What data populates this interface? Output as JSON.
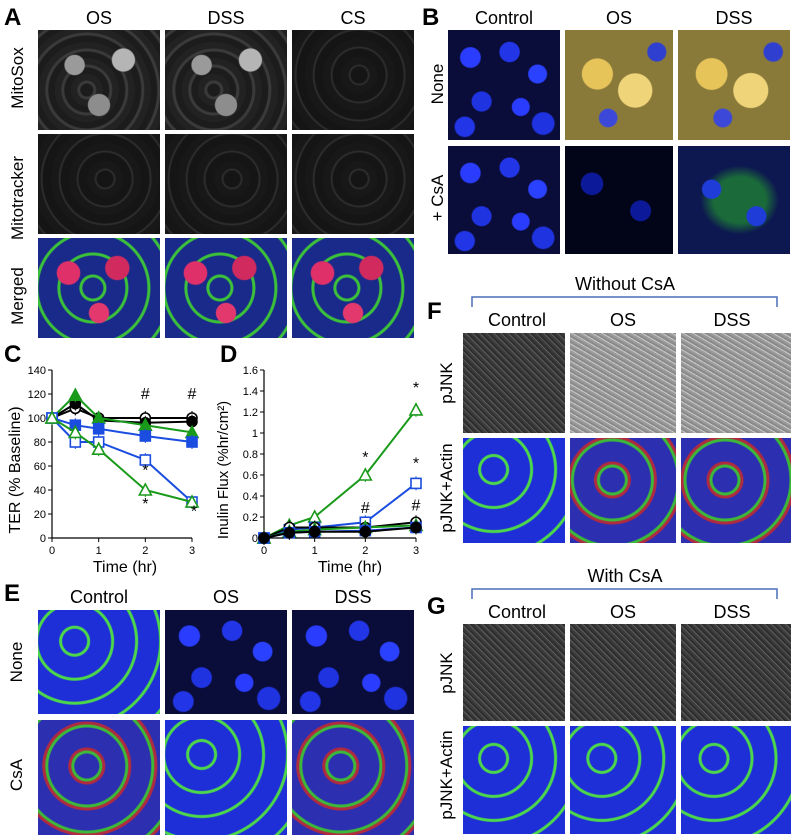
{
  "panels": {
    "A": {
      "label": "A",
      "columns": [
        "OS",
        "DSS",
        "CS"
      ],
      "rows": [
        "MitoSox",
        "Mitotracker",
        "Merged"
      ]
    },
    "B": {
      "label": "B",
      "columns": [
        "Control",
        "OS",
        "DSS"
      ],
      "rows": [
        "None",
        "+ CsA"
      ]
    },
    "C": {
      "label": "C",
      "ylabel": "TER (% Baseline)",
      "xlabel": "Time (hr)",
      "yticks": [
        "0",
        "20",
        "40",
        "60",
        "80",
        "100",
        "120",
        "140"
      ],
      "xticks": [
        "0",
        "1",
        "2",
        "3"
      ],
      "annotations": [
        "#",
        "#",
        "*",
        "*",
        "*"
      ]
    },
    "D": {
      "label": "D",
      "ylabel": "Inulin Flux (%hr/cm²)",
      "xlabel": "Time (hr)",
      "yticks": [
        "0",
        "0.2",
        "0.4",
        "0.6",
        "0.8",
        "1",
        "1.2",
        "1.4",
        "1.6"
      ],
      "xticks": [
        "0",
        "1",
        "2",
        "3"
      ],
      "annotations": [
        "*",
        "*",
        "*",
        "#",
        "#"
      ]
    },
    "E": {
      "label": "E",
      "columns": [
        "Control",
        "OS",
        "DSS"
      ],
      "rows": [
        "None",
        "CsA"
      ]
    },
    "F": {
      "label": "F",
      "group": "Without CsA",
      "columns": [
        "Control",
        "OS",
        "DSS"
      ],
      "rows": [
        "pJNK",
        "pJNK+Actin"
      ]
    },
    "G": {
      "label": "G",
      "group": "With CsA",
      "columns": [
        "Control",
        "OS",
        "DSS"
      ],
      "rows": [
        "pJNK",
        "pJNK+Actin"
      ]
    }
  },
  "chart_data": [
    {
      "type": "line",
      "panel": "C",
      "xlabel": "Time (hr)",
      "ylabel": "TER (% Baseline)",
      "ylim": [
        0,
        140
      ],
      "xlim": [
        0,
        3
      ],
      "x": [
        0,
        0.5,
        1,
        2,
        3
      ],
      "series": [
        {
          "color": "#000000",
          "marker": "open-circle",
          "values": [
            100,
            108,
            100,
            100,
            100
          ]
        },
        {
          "color": "#000000",
          "marker": "filled-circle",
          "values": [
            100,
            112,
            98,
            96,
            97
          ]
        },
        {
          "color": "#1a9a1a",
          "marker": "filled-triangle",
          "values": [
            100,
            119,
            100,
            94,
            88
          ]
        },
        {
          "color": "#1a4de0",
          "marker": "filled-square",
          "values": [
            100,
            94,
            91,
            85,
            80
          ]
        },
        {
          "color": "#1a4de0",
          "marker": "open-square",
          "values": [
            100,
            80,
            80,
            65,
            30
          ]
        },
        {
          "color": "#1a9a1a",
          "marker": "open-triangle",
          "values": [
            100,
            88,
            74,
            40,
            30
          ]
        }
      ]
    },
    {
      "type": "line",
      "panel": "D",
      "xlabel": "Time (hr)",
      "ylabel": "Inulin Flux (%hr/cm²)",
      "ylim": [
        0,
        1.6
      ],
      "xlim": [
        0,
        3
      ],
      "x": [
        0,
        0.5,
        1,
        2,
        3
      ],
      "series": [
        {
          "color": "#1a9a1a",
          "marker": "open-triangle",
          "values": [
            0,
            0.12,
            0.2,
            0.6,
            1.22
          ]
        },
        {
          "color": "#1a4de0",
          "marker": "open-square",
          "values": [
            0,
            0.08,
            0.1,
            0.15,
            0.52
          ]
        },
        {
          "color": "#000000",
          "marker": "open-circle",
          "values": [
            0,
            0.1,
            0.1,
            0.1,
            0.15
          ]
        },
        {
          "color": "#1a9a1a",
          "marker": "filled-triangle",
          "values": [
            0,
            0.06,
            0.08,
            0.1,
            0.12
          ]
        },
        {
          "color": "#1a4de0",
          "marker": "filled-square",
          "values": [
            0,
            0.05,
            0.06,
            0.07,
            0.1
          ]
        },
        {
          "color": "#000000",
          "marker": "filled-circle",
          "values": [
            0,
            0.05,
            0.06,
            0.06,
            0.1
          ]
        }
      ]
    }
  ]
}
